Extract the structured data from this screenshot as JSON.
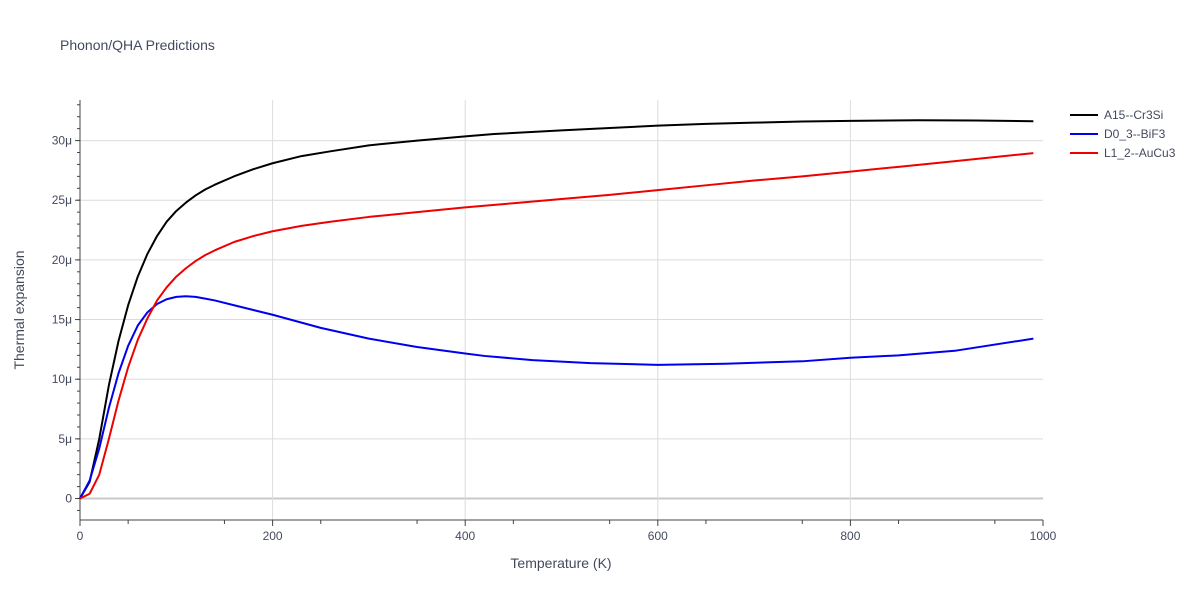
{
  "chart_data": {
    "type": "line",
    "title": "Phonon/QHA Predictions",
    "xlabel": "Temperature (K)",
    "ylabel": "Thermal expansion",
    "xlim": [
      0,
      1000
    ],
    "ylim": [
      -1.8e-06,
      3.34e-05
    ],
    "x_ticks": [
      0,
      200,
      400,
      600,
      800,
      1000
    ],
    "x_tick_labels": [
      "0",
      "200",
      "400",
      "600",
      "800",
      "1000"
    ],
    "y_ticks": [
      0,
      5e-06,
      1e-05,
      1.5e-05,
      2e-05,
      2.5e-05,
      3e-05
    ],
    "y_tick_labels": [
      "0",
      "5μ",
      "10μ",
      "15μ",
      "20μ",
      "25μ",
      "30μ"
    ],
    "grid": true,
    "legend_position": "right",
    "series": [
      {
        "name": "A15--Cr3Si",
        "color": "#000000",
        "x": [
          0,
          10,
          20,
          30,
          40,
          50,
          60,
          70,
          80,
          90,
          100,
          110,
          120,
          130,
          140,
          160,
          180,
          200,
          230,
          260,
          300,
          350,
          400,
          430,
          500,
          550,
          600,
          650,
          700,
          750,
          800,
          870,
          930,
          990
        ],
        "y": [
          0,
          1.4e-06,
          5e-06,
          9.5e-06,
          1.32e-05,
          1.62e-05,
          1.86e-05,
          2.05e-05,
          2.2e-05,
          2.32e-05,
          2.41e-05,
          2.48e-05,
          2.54e-05,
          2.59e-05,
          2.63e-05,
          2.7e-05,
          2.76e-05,
          2.81e-05,
          2.87e-05,
          2.91e-05,
          2.96e-05,
          3e-05,
          3.035e-05,
          3.055e-05,
          3.085e-05,
          3.105e-05,
          3.125e-05,
          3.14e-05,
          3.15e-05,
          3.16e-05,
          3.165e-05,
          3.17e-05,
          3.168e-05,
          3.162e-05
        ]
      },
      {
        "name": "D0_3--BiF3",
        "color": "#0000ee",
        "x": [
          0,
          10,
          20,
          30,
          40,
          50,
          60,
          70,
          80,
          90,
          100,
          110,
          120,
          130,
          140,
          160,
          180,
          200,
          250,
          300,
          350,
          400,
          420,
          470,
          530,
          600,
          670,
          750,
          800,
          850,
          910,
          990
        ],
        "y": [
          0,
          1.5e-06,
          4.2e-06,
          7.6e-06,
          1.05e-05,
          1.28e-05,
          1.45e-05,
          1.56e-05,
          1.63e-05,
          1.67e-05,
          1.69e-05,
          1.695e-05,
          1.69e-05,
          1.675e-05,
          1.66e-05,
          1.62e-05,
          1.58e-05,
          1.54e-05,
          1.43e-05,
          1.34e-05,
          1.27e-05,
          1.215e-05,
          1.195e-05,
          1.16e-05,
          1.135e-05,
          1.12e-05,
          1.13e-05,
          1.15e-05,
          1.18e-05,
          1.2e-05,
          1.24e-05,
          1.34e-05
        ]
      },
      {
        "name": "L1_2--AuCu3",
        "color": "#ee0000",
        "x": [
          0,
          10,
          20,
          30,
          40,
          50,
          60,
          70,
          80,
          90,
          100,
          110,
          120,
          130,
          140,
          160,
          180,
          200,
          230,
          260,
          300,
          350,
          400,
          450,
          500,
          550,
          600,
          650,
          700,
          750,
          800,
          850,
          900,
          990
        ],
        "y": [
          0,
          4e-07,
          2e-06,
          5e-06,
          8.2e-06,
          1.1e-05,
          1.33e-05,
          1.51e-05,
          1.66e-05,
          1.77e-05,
          1.86e-05,
          1.93e-05,
          1.99e-05,
          2.04e-05,
          2.08e-05,
          2.15e-05,
          2.2e-05,
          2.24e-05,
          2.285e-05,
          2.32e-05,
          2.36e-05,
          2.4e-05,
          2.44e-05,
          2.475e-05,
          2.51e-05,
          2.545e-05,
          2.585e-05,
          2.625e-05,
          2.665e-05,
          2.7e-05,
          2.74e-05,
          2.78e-05,
          2.82e-05,
          2.895e-05
        ]
      }
    ]
  }
}
